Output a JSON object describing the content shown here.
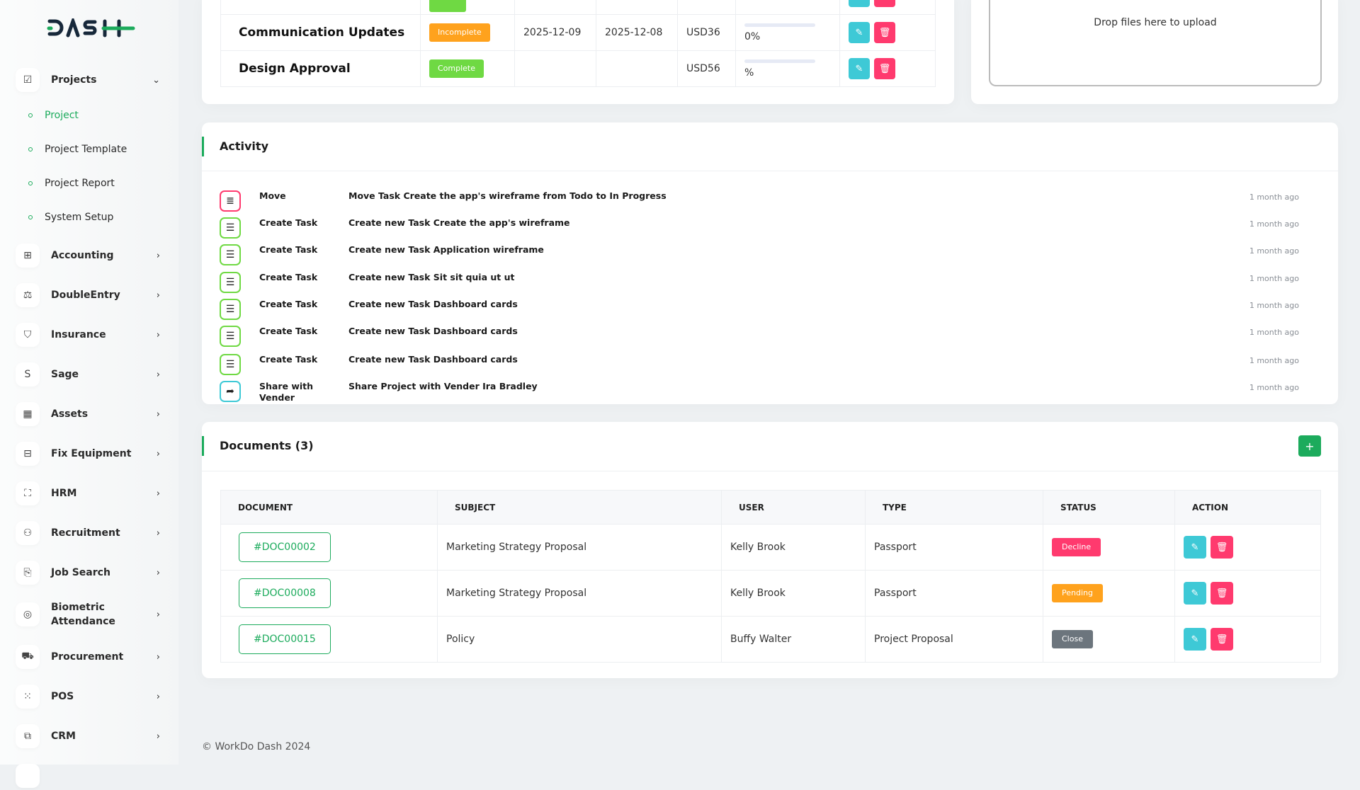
{
  "brand": {
    "logo_text": "DASH",
    "accent": "#1cab5c"
  },
  "sidebar": {
    "projects": {
      "label": "Projects",
      "icon": "check-square-icon",
      "expanded": true,
      "children": [
        {
          "label": "Project",
          "active": true
        },
        {
          "label": "Project Template"
        },
        {
          "label": "Project Report"
        },
        {
          "label": "System Setup"
        }
      ]
    },
    "items": [
      {
        "label": "Accounting",
        "icon": "grid-plus-icon"
      },
      {
        "label": "DoubleEntry",
        "icon": "scale-icon"
      },
      {
        "label": "Insurance",
        "icon": "shield-check-icon"
      },
      {
        "label": "Sage",
        "icon": "letter-s-icon"
      },
      {
        "label": "Assets",
        "icon": "calculator-icon"
      },
      {
        "label": "Fix Equipment",
        "icon": "archive-icon"
      },
      {
        "label": "HRM",
        "icon": "user-focus-icon"
      },
      {
        "label": "Recruitment",
        "icon": "user-plus-icon"
      },
      {
        "label": "Job Search",
        "icon": "file-search-icon"
      },
      {
        "label": "Biometric Attendance",
        "icon": "fingerprint-icon"
      },
      {
        "label": "Procurement",
        "icon": "cart-icon"
      },
      {
        "label": "POS",
        "icon": "dots-grid-icon"
      },
      {
        "label": "CRM",
        "icon": "layers-icon"
      }
    ]
  },
  "milestones": {
    "rows": [
      {
        "title": "Communication Updates",
        "status": "Incomplete",
        "status_color": "#ffa21d",
        "start": "2025-12-09",
        "end": "2025-12-08",
        "cost": "USD36",
        "progress_label": "0%",
        "progress": 0
      },
      {
        "title": "Design Approval",
        "status": "Complete",
        "status_color": "#6fd943",
        "start": "",
        "end": "",
        "cost": "USD56",
        "progress_label": "%",
        "progress": 0
      }
    ]
  },
  "upload": {
    "dropzone_text": "Drop files here to upload"
  },
  "activity": {
    "title": "Activity",
    "items": [
      {
        "type": "Move",
        "desc": "Move Task Create the app's wireframe from Todo to In Progress",
        "time": "1 month ago",
        "icon": "list-icon",
        "color": "#ff3a6e"
      },
      {
        "type": "Create Task",
        "desc": "Create new Task Create the app's wireframe",
        "time": "1 month ago",
        "icon": "list-check-icon",
        "color": "#6fd943"
      },
      {
        "type": "Create Task",
        "desc": "Create new Task Application wireframe",
        "time": "1 month ago",
        "icon": "list-check-icon",
        "color": "#6fd943"
      },
      {
        "type": "Create Task",
        "desc": "Create new Task Sit sit quia ut ut",
        "time": "1 month ago",
        "icon": "list-check-icon",
        "color": "#6fd943"
      },
      {
        "type": "Create Task",
        "desc": "Create new Task Dashboard cards",
        "time": "1 month ago",
        "icon": "list-check-icon",
        "color": "#6fd943"
      },
      {
        "type": "Create Task",
        "desc": "Create new Task Dashboard cards",
        "time": "1 month ago",
        "icon": "list-check-icon",
        "color": "#6fd943"
      },
      {
        "type": "Create Task",
        "desc": "Create new Task Dashboard cards",
        "time": "1 month ago",
        "icon": "list-check-icon",
        "color": "#6fd943"
      },
      {
        "type": "Share with Vender",
        "desc": "Share Project with Vender Ira Bradley",
        "time": "1 month ago",
        "icon": "share-icon",
        "color": "#3ec9d6"
      }
    ]
  },
  "documents": {
    "title": "Documents (3)",
    "add_label": "+",
    "columns": [
      "DOCUMENT",
      "SUBJECT",
      "USER",
      "TYPE",
      "STATUS",
      "ACTION"
    ],
    "rows": [
      {
        "doc": "#DOC00002",
        "subject": "Marketing Strategy Proposal",
        "user": "Kelly Brook",
        "type": "Passport",
        "status": "Decline",
        "status_color": "#ff3a6e"
      },
      {
        "doc": "#DOC00008",
        "subject": "Marketing Strategy Proposal",
        "user": "Kelly Brook",
        "type": "Passport",
        "status": "Pending",
        "status_color": "#ffa21d"
      },
      {
        "doc": "#DOC00015",
        "subject": "Policy",
        "user": "Buffy Walter",
        "type": "Project Proposal",
        "status": "Close",
        "status_color": "#6c757d"
      }
    ]
  },
  "footer": {
    "copyright": "© WorkDo Dash 2024"
  }
}
